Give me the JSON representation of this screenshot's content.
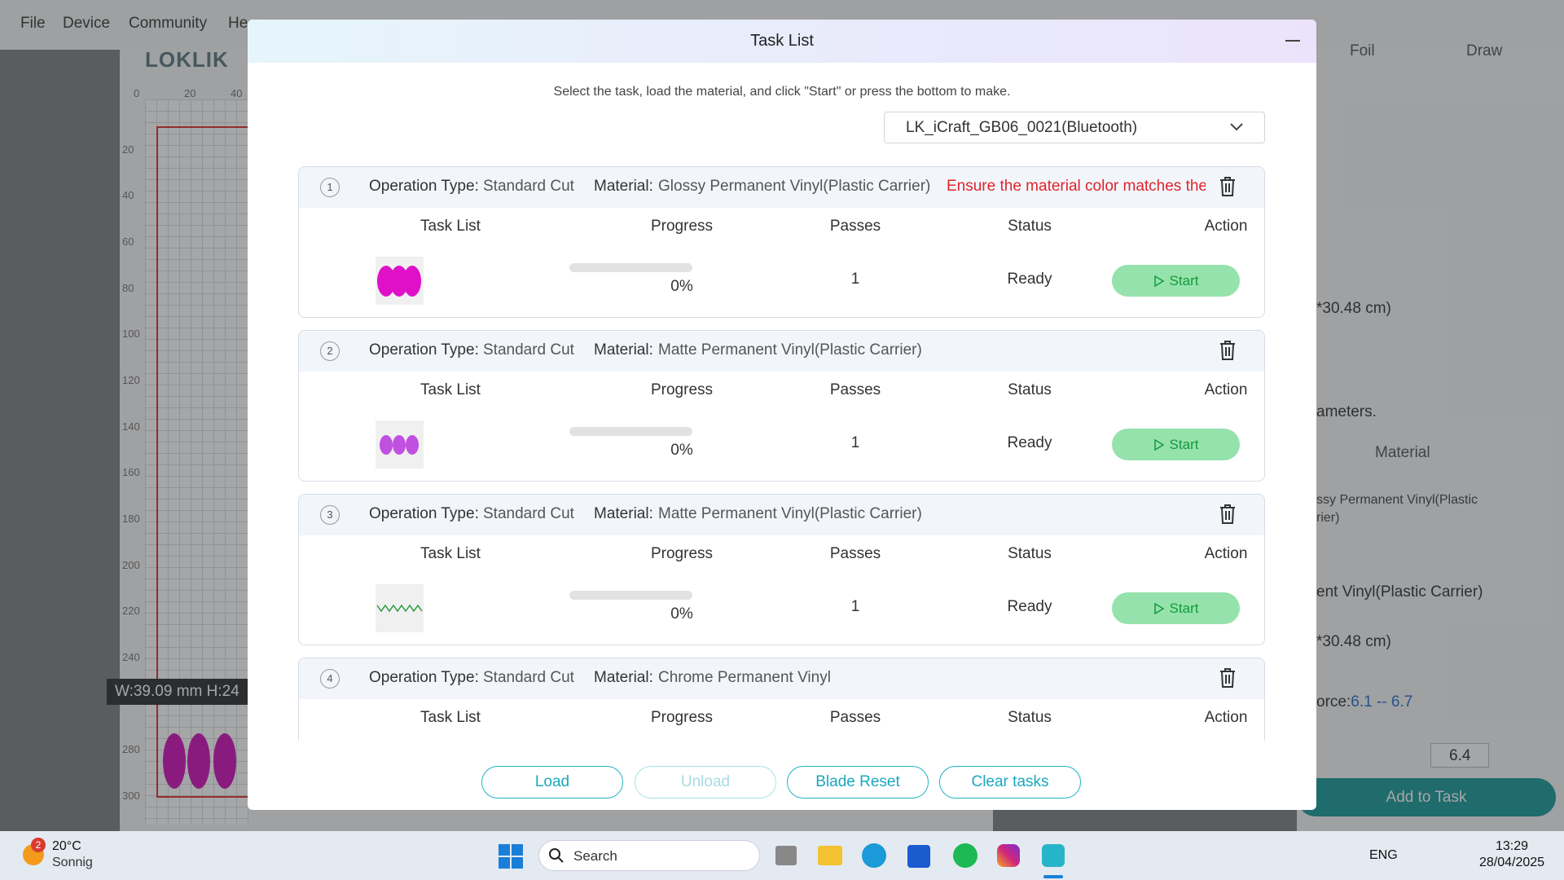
{
  "menu": {
    "items": [
      "File",
      "Device",
      "Community",
      "He"
    ]
  },
  "canvas": {
    "logo": "LOKLIK",
    "ruler_x": [
      "0",
      "20",
      "40"
    ],
    "ruler_y": [
      "20",
      "40",
      "60",
      "80",
      "100",
      "120",
      "140",
      "160",
      "180",
      "200",
      "220",
      "240",
      "280",
      "300"
    ],
    "dimension": "W:39.09 mm  H:24"
  },
  "side_panel": {
    "tabs": [
      "Foil",
      "Draw"
    ],
    "size_1": "*30.48 cm)",
    "hint": "ameters.",
    "material_header": "Material",
    "material_value": [
      "ssy Permanent Vinyl(Plastic",
      "rier)"
    ],
    "material_select": "ent Vinyl(Plastic Carrier)",
    "size_2": "*30.48 cm)",
    "force_label": "orce:",
    "force_range": "6.1 -- 6.7",
    "force_value": "6.4",
    "add_button": "Add to Task"
  },
  "modal": {
    "title": "Task List",
    "instruction": "Select the task, load the material, and click \"Start\" or press the bottom to make.",
    "device": "LK_iCraft_GB06_0021(Bluetooth)",
    "labels": {
      "operation_type": "Operation Type:",
      "material": "Material:"
    },
    "columns": [
      "Task List",
      "Progress",
      "Passes",
      "Status",
      "Action"
    ],
    "tasks": [
      {
        "index": "1",
        "operation_type": "Standard Cut",
        "material": "Glossy Permanent Vinyl(Plastic Carrier)",
        "warning": "Ensure the material color matches the",
        "progress": "0%",
        "passes": "1",
        "status": "Ready",
        "action": "Start"
      },
      {
        "index": "2",
        "operation_type": "Standard Cut",
        "material": "Matte Permanent Vinyl(Plastic Carrier)",
        "progress": "0%",
        "passes": "1",
        "status": "Ready",
        "action": "Start"
      },
      {
        "index": "3",
        "operation_type": "Standard Cut",
        "material": "Matte Permanent Vinyl(Plastic Carrier)",
        "progress": "0%",
        "passes": "1",
        "status": "Ready",
        "action": "Start"
      },
      {
        "index": "4",
        "operation_type": "Standard Cut",
        "material": "Chrome Permanent Vinyl"
      }
    ],
    "buttons": [
      "Load",
      "Unload",
      "Blade Reset",
      "Clear tasks"
    ]
  },
  "taskbar": {
    "weather_badge": "2",
    "temperature": "20°C",
    "weather": "Sonnig",
    "search": "Search",
    "language": "ENG",
    "time": "13:29",
    "date": "28/04/2025"
  }
}
